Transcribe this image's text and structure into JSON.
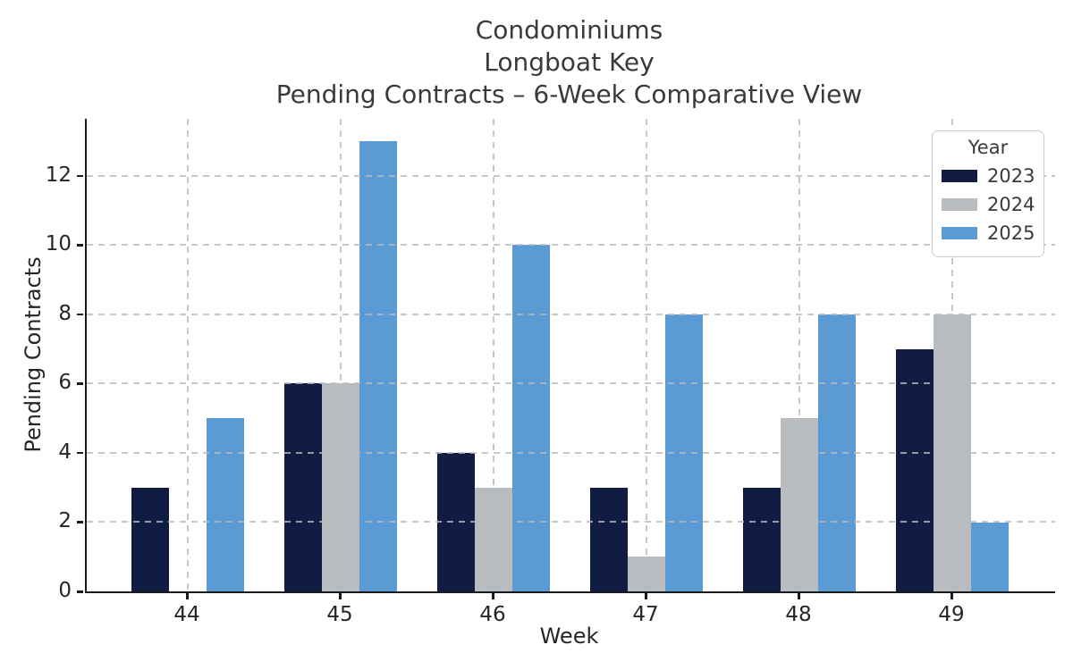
{
  "chart_data": {
    "type": "bar",
    "title_lines": [
      "Condominiums",
      "Longboat Key",
      "Pending Contracts – 6-Week Comparative View"
    ],
    "xlabel": "Week",
    "ylabel": "Pending Contracts",
    "categories": [
      "44",
      "45",
      "46",
      "47",
      "48",
      "49"
    ],
    "series": [
      {
        "name": "2023",
        "color": "#101c44",
        "values": [
          3,
          6,
          4,
          3,
          3,
          7
        ]
      },
      {
        "name": "2024",
        "color": "#b9bcbf",
        "values": [
          0,
          6,
          3,
          1,
          5,
          8
        ]
      },
      {
        "name": "2025",
        "color": "#5b9bd5",
        "values": [
          5,
          13,
          10,
          8,
          8,
          2
        ]
      }
    ],
    "yticks": [
      0,
      2,
      4,
      6,
      8,
      10,
      12
    ],
    "ylim": [
      0,
      13.65
    ],
    "legend": {
      "title": "Year",
      "position": "upper right"
    },
    "grid": {
      "axis": "both",
      "style": "dashed",
      "color": "#cccccc",
      "above_bars": true
    },
    "spines": {
      "left": true,
      "bottom": true,
      "top": false,
      "right": false
    }
  }
}
